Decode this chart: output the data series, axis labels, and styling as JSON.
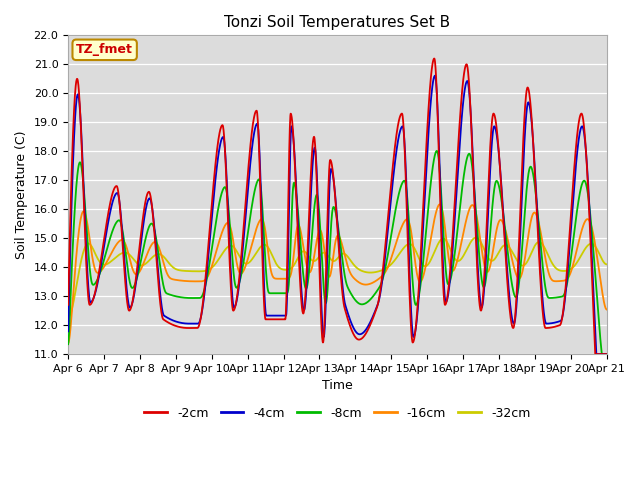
{
  "title": "Tonzi Soil Temperatures Set B",
  "xlabel": "Time",
  "ylabel": "Soil Temperature (C)",
  "ylim": [
    11.0,
    22.0
  ],
  "yticks": [
    11.0,
    12.0,
    13.0,
    14.0,
    15.0,
    16.0,
    17.0,
    18.0,
    19.0,
    20.0,
    21.0,
    22.0
  ],
  "bg_color": "#dcdcdc",
  "fig_bg": "#ffffff",
  "series_colors": {
    "-2cm": "#dd0000",
    "-4cm": "#0000cc",
    "-8cm": "#00bb00",
    "-16cm": "#ff8800",
    "-32cm": "#cccc00"
  },
  "annotation_text": "TZ_fmet",
  "annotation_bg": "#ffffcc",
  "annotation_border": "#bb8800",
  "annotation_text_color": "#cc0000",
  "x_start": 6.0,
  "x_end": 21.0,
  "x_tick_labels": [
    "Apr 6",
    "Apr 7",
    "Apr 8",
    "Apr 9",
    "Apr 10",
    "Apr 11",
    "Apr 12",
    "Apr 13",
    "Apr 14",
    "Apr 15",
    "Apr 16",
    "Apr 17",
    "Apr 18",
    "Apr 19",
    "Apr 20",
    "Apr 21"
  ],
  "x_tick_positions": [
    6,
    7,
    8,
    9,
    10,
    11,
    12,
    13,
    14,
    15,
    16,
    17,
    18,
    19,
    20,
    21
  ],
  "peak_days": [
    6.25,
    7.35,
    8.25,
    9.35,
    10.3,
    11.25,
    12.2,
    12.85,
    13.3,
    14.1,
    15.3,
    16.2,
    17.1,
    17.85,
    18.8,
    19.3,
    20.3
  ],
  "peak_vals_2cm": [
    20.5,
    16.8,
    16.6,
    11.9,
    18.9,
    19.4,
    19.3,
    18.5,
    17.7,
    11.5,
    19.3,
    21.2,
    21.0,
    19.3,
    20.2,
    11.9,
    19.3
  ],
  "trough_days": [
    6.0,
    6.6,
    7.7,
    8.65,
    9.6,
    10.6,
    11.5,
    12.05,
    12.55,
    13.1,
    13.7,
    14.6,
    15.6,
    16.5,
    17.5,
    18.4,
    19.7,
    20.6
  ],
  "trough_vals_2cm": [
    12.7,
    12.7,
    12.5,
    12.2,
    11.9,
    12.5,
    12.2,
    12.2,
    12.4,
    11.4,
    12.6,
    12.6,
    11.4,
    12.7,
    12.5,
    11.9,
    12.0,
    13.5
  ]
}
